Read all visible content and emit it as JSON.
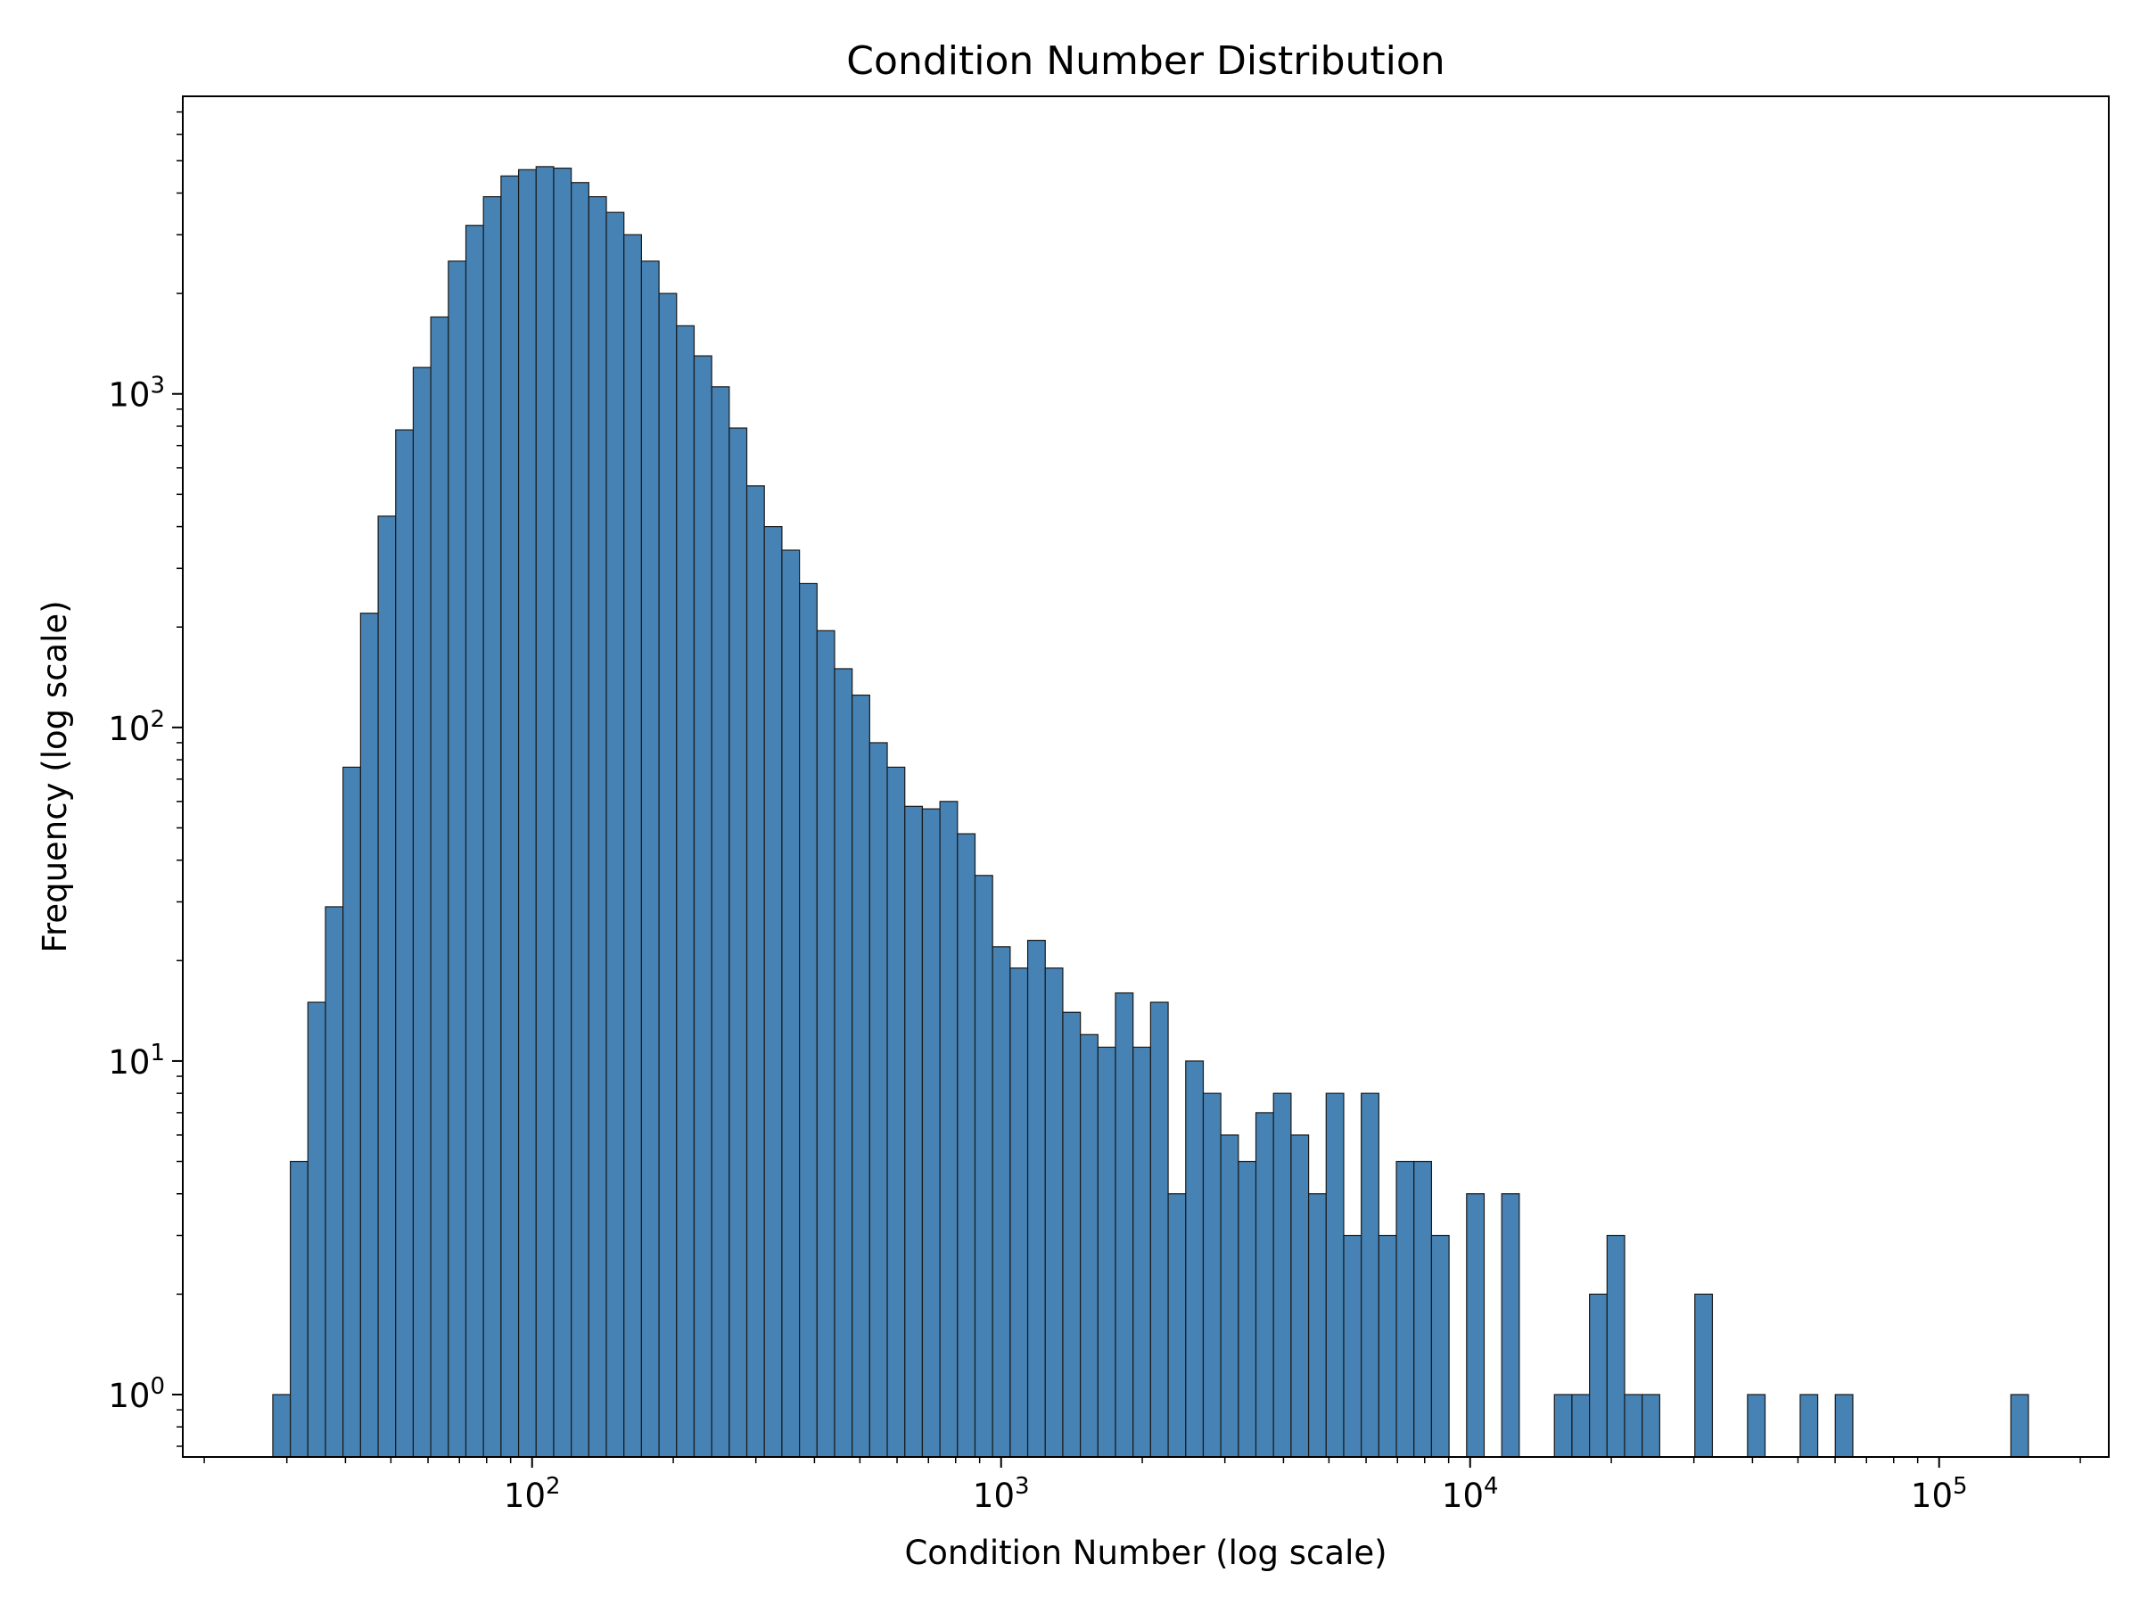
{
  "chart_data": {
    "type": "bar",
    "title": "Condition Number Distribution",
    "xlabel": "Condition Number (log scale)",
    "ylabel": "Frequency (log scale)",
    "x_scale": "log",
    "y_scale": "log",
    "xlim": [
      18,
      230000
    ],
    "ylim": [
      0.65,
      7800
    ],
    "x_ticks": [
      {
        "value": 100,
        "base": "10",
        "exp": "2"
      },
      {
        "value": 1000,
        "base": "10",
        "exp": "3"
      },
      {
        "value": 10000,
        "base": "10",
        "exp": "4"
      },
      {
        "value": 100000,
        "base": "10",
        "exp": "5"
      }
    ],
    "y_ticks": [
      {
        "value": 1,
        "base": "10",
        "exp": "0"
      },
      {
        "value": 10,
        "base": "10",
        "exp": "1"
      },
      {
        "value": 100,
        "base": "10",
        "exp": "2"
      },
      {
        "value": 1000,
        "base": "10",
        "exp": "3"
      }
    ],
    "grid": false,
    "legend": "none",
    "bar_color": "#4682b4",
    "bar_edge_color": "#1a1a1a",
    "bin_range": [
      28,
      155000
    ],
    "bin_count": 100,
    "counts": [
      1,
      5,
      15,
      29,
      76,
      220,
      430,
      780,
      1200,
      1700,
      2500,
      3200,
      3900,
      4500,
      4700,
      4800,
      4750,
      4300,
      3900,
      3500,
      3000,
      2500,
      2000,
      1600,
      1300,
      1050,
      790,
      530,
      400,
      340,
      270,
      195,
      150,
      125,
      90,
      76,
      58,
      57,
      60,
      48,
      36,
      22,
      19,
      23,
      19,
      14,
      12,
      11,
      16,
      11,
      15,
      4,
      10,
      8,
      6,
      5,
      7,
      8,
      6,
      4,
      8,
      3,
      8,
      3,
      5,
      5,
      3,
      0,
      4,
      0,
      4,
      0,
      0,
      1,
      1,
      2,
      3,
      1,
      1,
      0,
      0,
      2,
      0,
      0,
      1,
      0,
      0,
      1,
      0,
      1,
      0,
      0,
      0,
      0,
      0,
      0,
      0,
      0,
      0,
      1
    ]
  }
}
